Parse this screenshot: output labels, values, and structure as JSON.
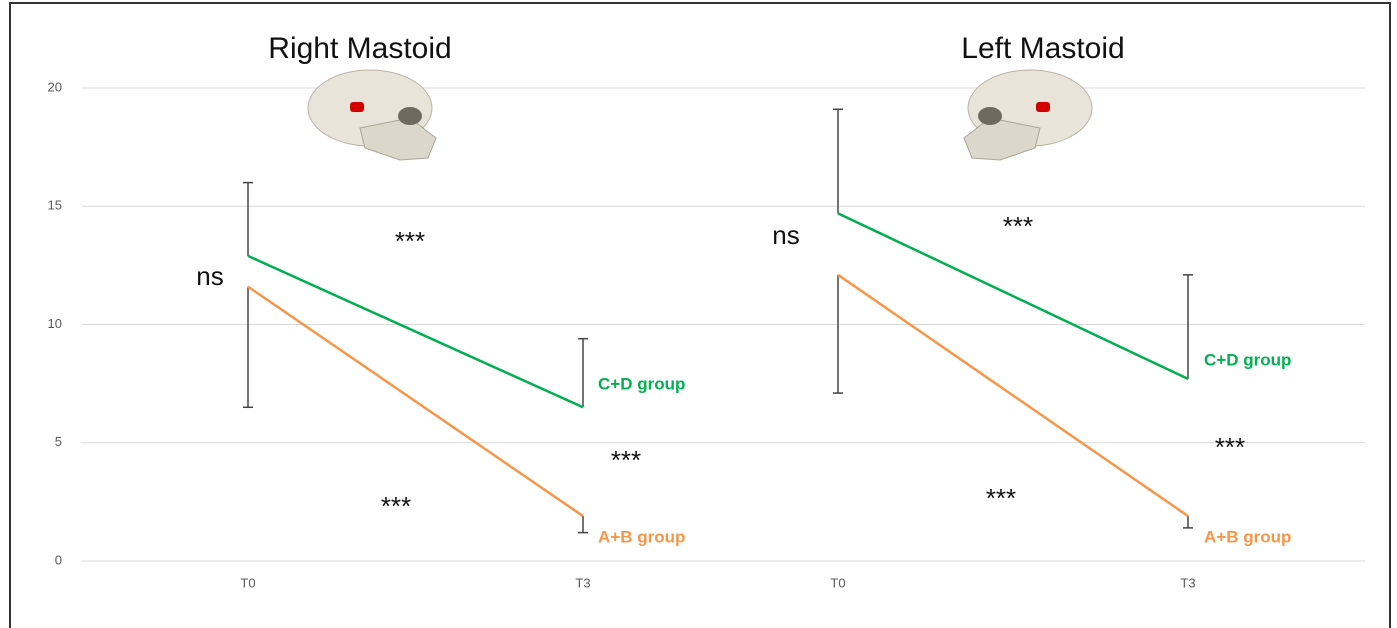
{
  "chart_data": [
    {
      "type": "line",
      "title": "Right Mastoid",
      "categories": [
        "T0",
        "T3"
      ],
      "ylim": [
        0,
        20
      ],
      "yticks": [
        0,
        5,
        10,
        15,
        20
      ],
      "grid": true,
      "series": [
        {
          "name": "C+D group",
          "color": "#00b050",
          "values": [
            12.9,
            6.5
          ],
          "errors": [
            3.1,
            2.9
          ],
          "error_side": "up"
        },
        {
          "name": "A+B group",
          "color": "#f79646",
          "values": [
            11.6,
            1.9
          ],
          "errors": [
            5.1,
            0.7
          ],
          "error_side": "down"
        }
      ],
      "annotations": [
        "ns",
        "***",
        "***",
        "***"
      ]
    },
    {
      "type": "line",
      "title": "Left Mastoid",
      "categories": [
        "T0",
        "T3"
      ],
      "series": [
        {
          "name": "C+D group",
          "color": "#00b050",
          "values": [
            14.7,
            7.7
          ],
          "errors": [
            4.4,
            4.4
          ],
          "error_side": "up"
        },
        {
          "name": "A+B group",
          "color": "#f79646",
          "values": [
            12.1,
            1.9
          ],
          "errors": [
            5.0,
            0.5
          ],
          "error_side": "down"
        }
      ],
      "annotations": [
        "ns",
        "***",
        "***",
        "***"
      ]
    }
  ]
}
